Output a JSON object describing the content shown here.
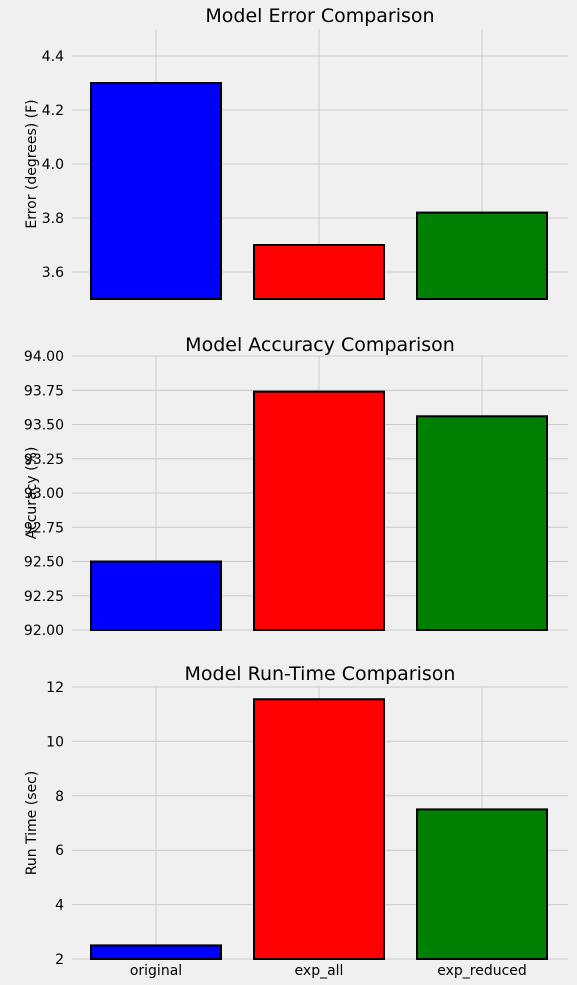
{
  "chart_data": [
    {
      "type": "bar",
      "title": "Model Error Comparison",
      "ylabel": "Error (degrees) (F)",
      "xlabel": "",
      "categories": [
        "original",
        "exp_all",
        "exp_reduced"
      ],
      "values": [
        4.3,
        3.7,
        3.82
      ],
      "colors": [
        "#0000ff",
        "#ff0000",
        "#008000"
      ],
      "ylim": [
        3.5,
        4.5
      ],
      "yticks": [
        3.6,
        3.8,
        4.0,
        4.2,
        4.4
      ],
      "ytick_labels": [
        "3.6",
        "3.8",
        "4.0",
        "4.2",
        "4.4"
      ],
      "show_xtick_labels": false,
      "grid": true
    },
    {
      "type": "bar",
      "title": "Model Accuracy Comparison",
      "ylabel": "Accuracy (%)",
      "xlabel": "",
      "categories": [
        "original",
        "exp_all",
        "exp_reduced"
      ],
      "values": [
        92.5,
        93.74,
        93.56
      ],
      "colors": [
        "#0000ff",
        "#ff0000",
        "#008000"
      ],
      "ylim": [
        92.0,
        94.0
      ],
      "yticks": [
        92.0,
        92.25,
        92.5,
        92.75,
        93.0,
        93.25,
        93.5,
        93.75,
        94.0
      ],
      "ytick_labels": [
        "92.00",
        "92.25",
        "92.50",
        "92.75",
        "93.00",
        "93.25",
        "93.50",
        "93.75",
        "94.00"
      ],
      "show_xtick_labels": false,
      "grid": true
    },
    {
      "type": "bar",
      "title": "Model Run-Time Comparison",
      "ylabel": "Run Time (sec)",
      "xlabel": "",
      "categories": [
        "original",
        "exp_all",
        "exp_reduced"
      ],
      "values": [
        2.5,
        11.55,
        7.5
      ],
      "colors": [
        "#0000ff",
        "#ff0000",
        "#008000"
      ],
      "ylim": [
        2,
        12
      ],
      "yticks": [
        2,
        4,
        6,
        8,
        10,
        12
      ],
      "ytick_labels": [
        "2",
        "4",
        "6",
        "8",
        "10",
        "12"
      ],
      "show_xtick_labels": true,
      "grid": true
    }
  ]
}
